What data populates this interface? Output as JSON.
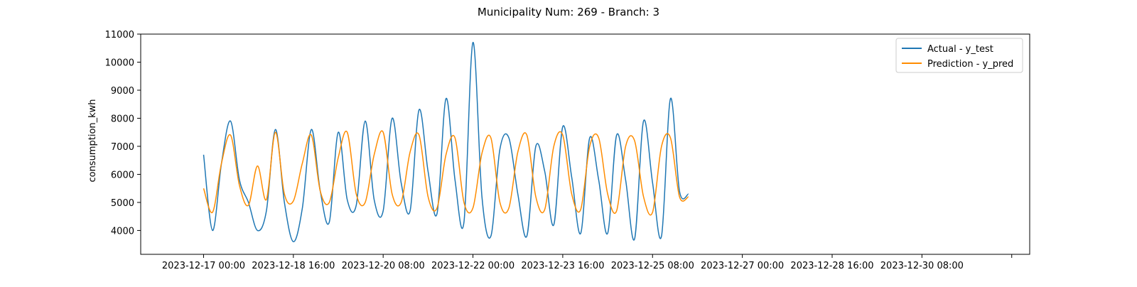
{
  "chart_data": {
    "type": "line",
    "title": "Municipality Num: 269 - Branch: 3",
    "xlabel": "",
    "ylabel": "consumption_kwh",
    "x_start": "2023-12-17 00:00",
    "x_step_hours": 4,
    "xlim": [
      "2023-12-15 20:00",
      "2024-01-01 08:00"
    ],
    "ylim": [
      3150,
      11000
    ],
    "x_ticks": [
      "2023-12-17 00:00",
      "2023-12-18 16:00",
      "2023-12-20 08:00",
      "2023-12-22 00:00",
      "2023-12-23 16:00",
      "2023-12-25 08:00",
      "2023-12-27 00:00",
      "2023-12-28 16:00",
      "2023-12-30 08:00",
      "2024-01-01 00:00"
    ],
    "x_tick_labels": [
      "2023-12-17 00:00",
      "2023-12-18 16:00",
      "2023-12-20 08:00",
      "2023-12-22 00:00",
      "2023-12-23 16:00",
      "2023-12-25 08:00",
      "2023-12-27 00:00",
      "2023-12-28 16:00",
      "2023-12-30 08:00",
      ""
    ],
    "y_ticks": [
      4000,
      5000,
      6000,
      7000,
      8000,
      9000,
      10000,
      11000
    ],
    "grid": false,
    "legend_position": "top-right",
    "series": [
      {
        "name": "Actual - y_test",
        "color": "#1f77b4",
        "values": [
          6700,
          4000,
          6400,
          7900,
          5800,
          5000,
          4000,
          4700,
          7600,
          5000,
          3600,
          4800,
          7600,
          5400,
          4300,
          7500,
          5100,
          4900,
          7900,
          5100,
          4700,
          8000,
          5700,
          4700,
          8300,
          6100,
          4600,
          8700,
          5800,
          4300,
          10700,
          5200,
          3800,
          6900,
          7300,
          5300,
          3800,
          7000,
          6100,
          4200,
          7700,
          5900,
          3900,
          7300,
          5800,
          3900,
          7400,
          5800,
          3700,
          7900,
          5700,
          3800,
          8700,
          5400,
          5300
        ]
      },
      {
        "name": "Prediction - y_pred",
        "color": "#ff8c00",
        "values": [
          5500,
          4650,
          6400,
          7400,
          5600,
          4900,
          6300,
          5100,
          7500,
          5300,
          5050,
          6400,
          7400,
          5400,
          5000,
          6600,
          7500,
          5300,
          5000,
          6700,
          7500,
          5300,
          5000,
          6800,
          7400,
          5200,
          4800,
          6700,
          7300,
          5000,
          4800,
          6750,
          7300,
          5000,
          4800,
          6800,
          7400,
          5200,
          4750,
          7000,
          7400,
          5300,
          4750,
          7000,
          7300,
          5300,
          4700,
          7000,
          7200,
          5200,
          4650,
          7000,
          7300,
          5200,
          5200
        ]
      }
    ]
  }
}
